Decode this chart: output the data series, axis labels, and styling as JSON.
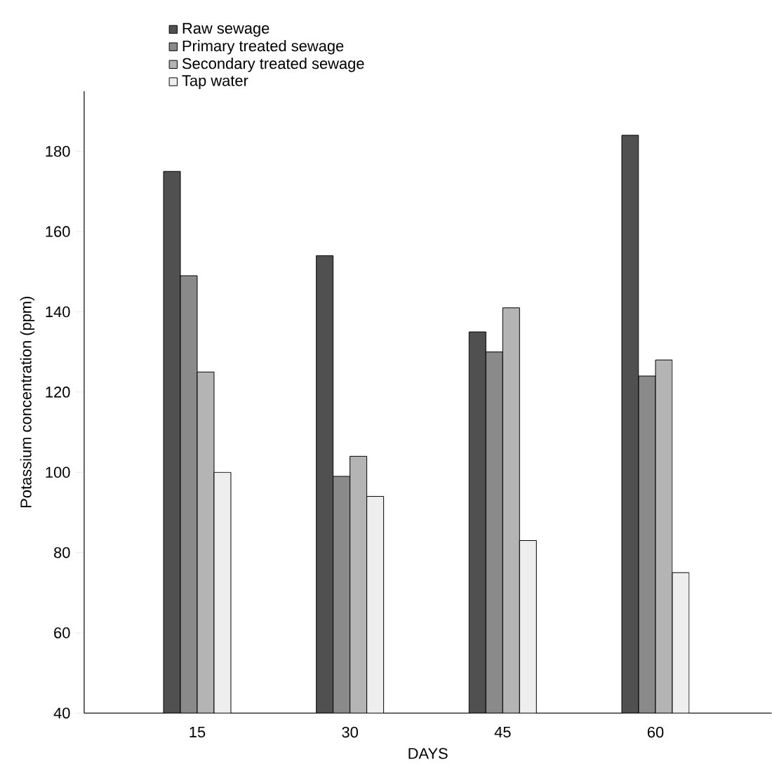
{
  "chart_data": {
    "type": "bar",
    "xlabel": "DAYS",
    "ylabel": "Potassium concentration (ppm)",
    "categories": [
      "15",
      "30",
      "45",
      "60"
    ],
    "series": [
      {
        "name": "Raw sewage",
        "color": "#505050",
        "values": [
          175,
          154,
          135,
          184
        ]
      },
      {
        "name": "Primary treated sewage",
        "color": "#8a8a8a",
        "values": [
          149,
          99,
          130,
          124
        ]
      },
      {
        "name": "Secondary treated sewage",
        "color": "#b4b4b4",
        "values": [
          125,
          104,
          141,
          128
        ]
      },
      {
        "name": "Tap water",
        "color": "#eeeeee",
        "values": [
          100,
          94,
          83,
          75
        ]
      }
    ],
    "ylim": [
      40,
      195
    ],
    "yticks": [
      40,
      60,
      80,
      100,
      120,
      140,
      160,
      180
    ],
    "grid": false,
    "legend": "top"
  }
}
